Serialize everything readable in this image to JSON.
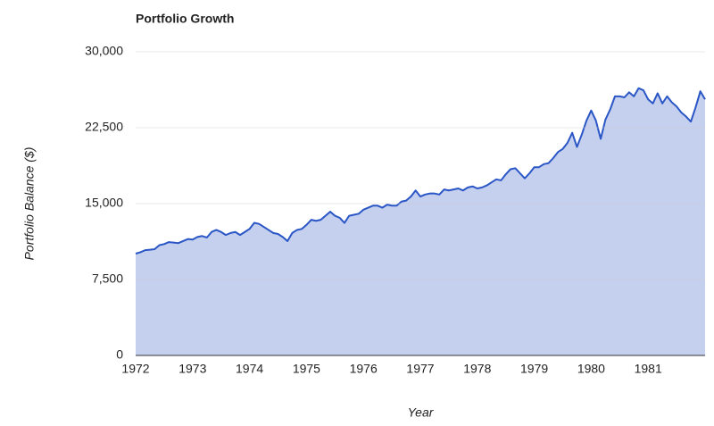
{
  "chart_data": {
    "type": "area",
    "title": "Portfolio Growth",
    "x_label": "Year",
    "y_label": "Portfolio Balance ($)",
    "x": [
      1972,
      1972.083,
      1972.167,
      1972.25,
      1972.333,
      1972.417,
      1972.5,
      1972.583,
      1972.667,
      1972.75,
      1972.833,
      1972.917,
      1973,
      1973.083,
      1973.167,
      1973.25,
      1973.333,
      1973.417,
      1973.5,
      1973.583,
      1973.667,
      1973.75,
      1973.833,
      1973.917,
      1974,
      1974.083,
      1974.167,
      1974.25,
      1974.333,
      1974.417,
      1974.5,
      1974.583,
      1974.667,
      1974.75,
      1974.833,
      1974.917,
      1975,
      1975.083,
      1975.167,
      1975.25,
      1975.333,
      1975.417,
      1975.5,
      1975.583,
      1975.667,
      1975.75,
      1975.833,
      1975.917,
      1976,
      1976.083,
      1976.167,
      1976.25,
      1976.333,
      1976.417,
      1976.5,
      1976.583,
      1976.667,
      1976.75,
      1976.833,
      1976.917,
      1977,
      1977.083,
      1977.167,
      1977.25,
      1977.333,
      1977.417,
      1977.5,
      1977.583,
      1977.667,
      1977.75,
      1977.833,
      1977.917,
      1978,
      1978.083,
      1978.167,
      1978.25,
      1978.333,
      1978.417,
      1978.5,
      1978.583,
      1978.667,
      1978.75,
      1978.833,
      1978.917,
      1979,
      1979.083,
      1979.167,
      1979.25,
      1979.333,
      1979.417,
      1979.5,
      1979.583,
      1979.667,
      1979.75,
      1979.833,
      1979.917,
      1980,
      1980.083,
      1980.167,
      1980.25,
      1980.333,
      1980.417,
      1980.5,
      1980.583,
      1980.667,
      1980.75,
      1980.833,
      1980.917,
      1981,
      1981.083,
      1981.167,
      1981.25,
      1981.333,
      1981.417,
      1981.5,
      1981.583,
      1981.667,
      1981.75,
      1981.833,
      1981.917,
      1982
    ],
    "series": [
      {
        "name": "Portfolio Balance",
        "color": "#2a56c6",
        "fill": "#c5d0ef",
        "values": [
          10060,
          10200,
          10400,
          10450,
          10500,
          10900,
          11000,
          11200,
          11150,
          11100,
          11300,
          11500,
          11450,
          11700,
          11800,
          11650,
          12200,
          12400,
          12200,
          11900,
          12100,
          12200,
          11900,
          12200,
          12500,
          13100,
          13000,
          12700,
          12400,
          12100,
          12000,
          11700,
          11300,
          12100,
          12400,
          12500,
          12900,
          13400,
          13300,
          13400,
          13800,
          14200,
          13800,
          13600,
          13100,
          13800,
          13900,
          14000,
          14400,
          14600,
          14800,
          14800,
          14600,
          14900,
          14800,
          14800,
          15200,
          15300,
          15700,
          16300,
          15700,
          15900,
          16000,
          16000,
          15900,
          16400,
          16300,
          16400,
          16500,
          16300,
          16600,
          16700,
          16500,
          16600,
          16800,
          17100,
          17400,
          17300,
          17900,
          18400,
          18500,
          18000,
          17500,
          18000,
          18600,
          18600,
          18900,
          19000,
          19500,
          20100,
          20400,
          21000,
          22000,
          20600,
          21800,
          23200,
          24200,
          23200,
          21400,
          23300,
          24300,
          25600,
          25600,
          25500,
          26000,
          25600,
          26400,
          26200,
          25300,
          24900,
          25900,
          24900,
          25600,
          25000,
          24600,
          24000,
          23600,
          23100,
          24500,
          26100,
          25300
        ]
      }
    ],
    "xlim": [
      1972,
      1982
    ],
    "xticks": [
      1972,
      1973,
      1974,
      1975,
      1976,
      1977,
      1978,
      1979,
      1980,
      1981
    ],
    "ylim": [
      0,
      30000
    ],
    "yticks": [
      0,
      {
        "value": 7500,
        "label": "7,500"
      },
      {
        "value": 15000,
        "label": "15,000"
      },
      {
        "value": 22500,
        "label": "22,500"
      },
      {
        "value": 30000,
        "label": "30,000"
      }
    ],
    "grid": true
  }
}
